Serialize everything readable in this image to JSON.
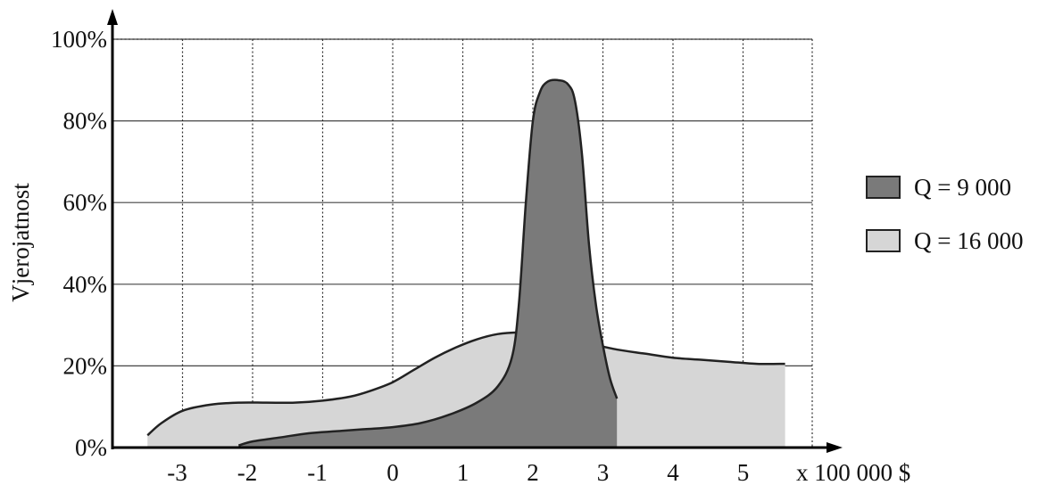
{
  "chart_data": {
    "type": "area",
    "title": "",
    "xlabel": "x 100 000 $",
    "ylabel": "Vjerojatnost",
    "x_ticks": [
      "-3",
      "-2",
      "-1",
      "0",
      "1",
      "2",
      "3",
      "4",
      "5"
    ],
    "y_ticks": [
      "0%",
      "20%",
      "40%",
      "60%",
      "80%",
      "100%"
    ],
    "xlim": [
      -3.5,
      5.6
    ],
    "ylim": [
      0,
      100
    ],
    "grid": true,
    "legend_position": "right",
    "series": [
      {
        "name": "Q = 16 000",
        "color": "#d6d6d6",
        "x": [
          -3.5,
          -3.3,
          -3.0,
          -2.6,
          -2.2,
          -1.8,
          -1.4,
          -1.0,
          -0.6,
          -0.3,
          0.0,
          0.3,
          0.6,
          0.9,
          1.2,
          1.5,
          1.8,
          2.1,
          2.4,
          2.8,
          3.2,
          3.6,
          4.0,
          4.4,
          4.8,
          5.2,
          5.6
        ],
        "y": [
          3,
          6,
          9,
          10.5,
          11,
          11,
          11,
          11.5,
          12.5,
          14,
          16,
          19,
          22,
          24.5,
          26.5,
          27.8,
          28.2,
          28,
          27,
          25.5,
          24,
          23,
          22,
          21.5,
          21,
          20.5,
          20.5
        ]
      },
      {
        "name": "Q = 9 000",
        "color": "#7a7a7a",
        "x": [
          -2.2,
          -2.0,
          -1.6,
          -1.2,
          -0.8,
          -0.4,
          0.0,
          0.4,
          0.8,
          1.2,
          1.5,
          1.7,
          1.8,
          1.9,
          2.0,
          2.1,
          2.2,
          2.35,
          2.5,
          2.6,
          2.7,
          2.8,
          2.9,
          3.0,
          3.1,
          3.2
        ],
        "y": [
          0.5,
          1.5,
          2.5,
          3.5,
          4,
          4.5,
          5,
          6,
          8,
          11,
          15,
          22,
          35,
          60,
          80,
          87,
          89.5,
          90,
          89,
          85,
          72,
          50,
          35,
          25,
          17,
          12
        ]
      }
    ]
  }
}
